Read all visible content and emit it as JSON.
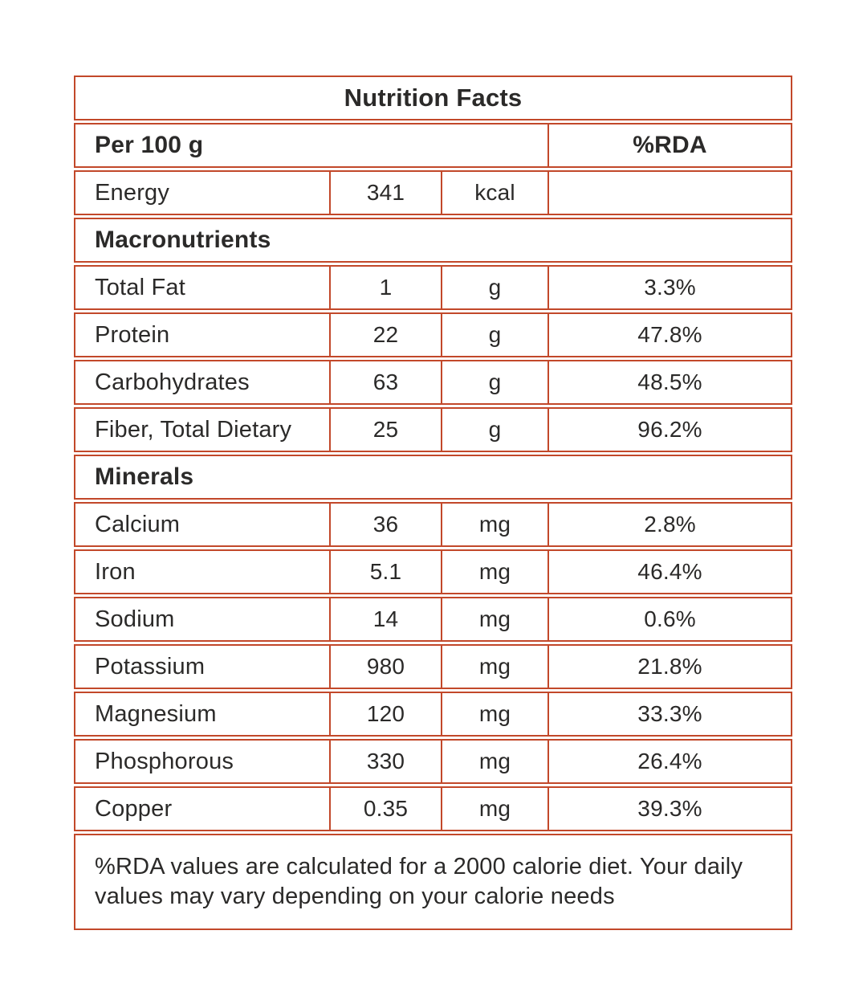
{
  "title": "Nutrition Facts",
  "header": {
    "serving_label": "Per 100 g",
    "rda_label": "%RDA"
  },
  "energy": {
    "name": "Energy",
    "value": "341",
    "unit": "kcal",
    "rda": ""
  },
  "sections": [
    {
      "heading": "Macronutrients",
      "rows": [
        {
          "name": "Total Fat",
          "value": "1",
          "unit": "g",
          "rda": "3.3%"
        },
        {
          "name": "Protein",
          "value": "22",
          "unit": "g",
          "rda": "47.8%"
        },
        {
          "name": "Carbohydrates",
          "value": "63",
          "unit": "g",
          "rda": "48.5%"
        },
        {
          "name": "Fiber, Total Dietary",
          "value": "25",
          "unit": "g",
          "rda": "96.2%"
        }
      ]
    },
    {
      "heading": "Minerals",
      "rows": [
        {
          "name": "Calcium",
          "value": "36",
          "unit": "mg",
          "rda": "2.8%"
        },
        {
          "name": "Iron",
          "value": "5.1",
          "unit": "mg",
          "rda": "46.4%"
        },
        {
          "name": "Sodium",
          "value": "14",
          "unit": "mg",
          "rda": "0.6%"
        },
        {
          "name": "Potassium",
          "value": "980",
          "unit": "mg",
          "rda": "21.8%"
        },
        {
          "name": "Magnesium",
          "value": "120",
          "unit": "mg",
          "rda": "33.3%"
        },
        {
          "name": "Phosphorous",
          "value": "330",
          "unit": "mg",
          "rda": "26.4%"
        },
        {
          "name": "Copper",
          "value": "0.35",
          "unit": "mg",
          "rda": "39.3%"
        }
      ]
    }
  ],
  "footnote": "%RDA values are calculated for a 2000 calorie diet. Your daily values may vary depending on your calorie needs",
  "colors": {
    "border": "#c2482a",
    "text": "#2b2a29",
    "background": "#ffffff"
  }
}
